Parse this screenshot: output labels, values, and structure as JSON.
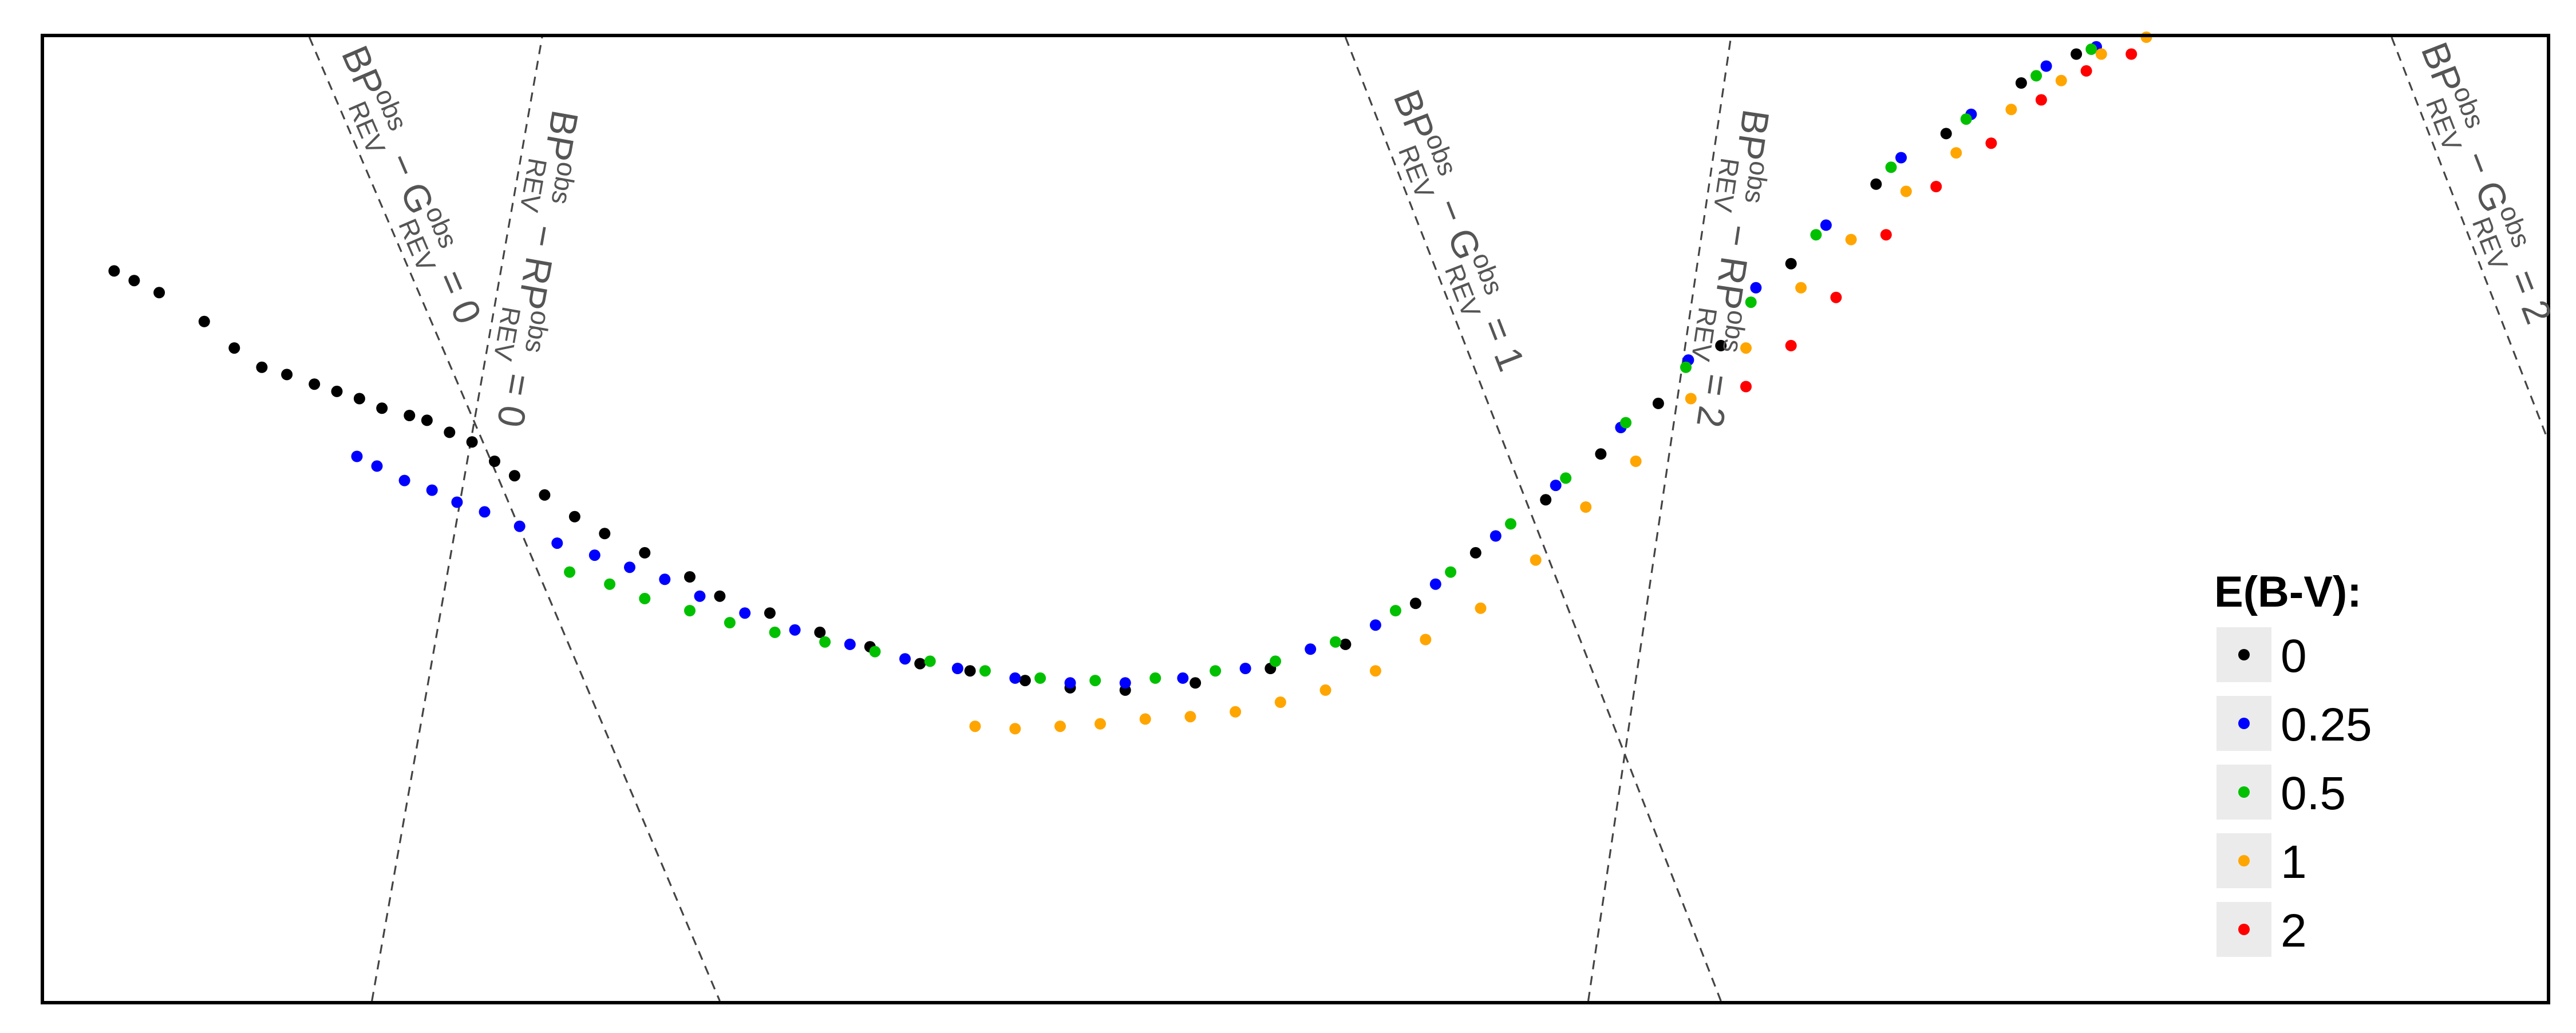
{
  "chart_data": {
    "type": "scatter",
    "title": "",
    "xlabel": "",
    "ylabel": "",
    "axes_visible": false,
    "grid": false,
    "legend": {
      "title": "E(B-V):",
      "position": "right",
      "entries": [
        {
          "label": "0",
          "color": "#000000"
        },
        {
          "label": "0.25",
          "color": "#0000ff"
        },
        {
          "label": "0.5",
          "color": "#00c000"
        },
        {
          "label": "1",
          "color": "#ffa500"
        },
        {
          "label": "2",
          "color": "#ff0000"
        }
      ]
    },
    "xlim": [
      0,
      1000
    ],
    "ylim": [
      0,
      400
    ],
    "guide_lines": [
      {
        "label": {
          "base": "BP",
          "sub": "REV",
          "sup": "obs",
          "minus": "G",
          "minus_sub": "REV",
          "minus_sup": "obs",
          "eq": "= 0"
        },
        "from": [
          106,
          400
        ],
        "to": [
          177,
          228
        ],
        "to2": [
          270,
          0
        ]
      },
      {
        "label": {
          "base": "BP",
          "sub": "REV",
          "sup": "obs",
          "minus": "G",
          "minus_sub": "REV",
          "minus_sup": "obs",
          "eq": "= 1"
        },
        "from": [
          520,
          400
        ],
        "to": [
          670,
          0
        ]
      },
      {
        "label": {
          "base": "BP",
          "sub": "REV",
          "sup": "obs",
          "minus": "G",
          "minus_sub": "REV",
          "minus_sup": "obs",
          "eq": "= 2"
        },
        "from": [
          938,
          400
        ],
        "to": [
          1000,
          234
        ]
      },
      {
        "label": {
          "base": "BP",
          "sub": "REV",
          "sup": "obs",
          "minus": "RP",
          "minus_sub": "REV",
          "minus_sup": "obs",
          "eq": "= 0"
        },
        "from": [
          131,
          0
        ],
        "to": [
          199,
          400
        ]
      },
      {
        "label": {
          "base": "BP",
          "sub": "REV",
          "sup": "obs",
          "minus": "RP",
          "minus_sub": "REV",
          "minus_sup": "obs",
          "eq": "= 2"
        },
        "from": [
          617,
          0
        ],
        "to": [
          674,
          400
        ]
      }
    ],
    "series": [
      {
        "name": "0",
        "color": "#000000",
        "points": [
          [
            28,
            303
          ],
          [
            36,
            299
          ],
          [
            46,
            294
          ],
          [
            64,
            282
          ],
          [
            76,
            271
          ],
          [
            87,
            263
          ],
          [
            97,
            260
          ],
          [
            108,
            256
          ],
          [
            117,
            253
          ],
          [
            126,
            250
          ],
          [
            135,
            246
          ],
          [
            146,
            243
          ],
          [
            153,
            241
          ],
          [
            162,
            236
          ],
          [
            171,
            232
          ],
          [
            180,
            224
          ],
          [
            188,
            218
          ],
          [
            200,
            210
          ],
          [
            212,
            201
          ],
          [
            224,
            194
          ],
          [
            240,
            186
          ],
          [
            258,
            176
          ],
          [
            270,
            168
          ],
          [
            290,
            161
          ],
          [
            310,
            153
          ],
          [
            330,
            147
          ],
          [
            350,
            140
          ],
          [
            370,
            137
          ],
          [
            392,
            133
          ],
          [
            410,
            130
          ],
          [
            432,
            129
          ],
          [
            460,
            132
          ],
          [
            490,
            138
          ],
          [
            520,
            148
          ],
          [
            548,
            165
          ],
          [
            572,
            186
          ],
          [
            600,
            208
          ],
          [
            622,
            227
          ],
          [
            645,
            248
          ],
          [
            670,
            272
          ],
          [
            698,
            306
          ],
          [
            732,
            339
          ],
          [
            760,
            360
          ],
          [
            790,
            381
          ],
          [
            812,
            393
          ]
        ]
      },
      {
        "name": "0.25",
        "color": "#0000ff",
        "points": [
          [
            125,
            226
          ],
          [
            133,
            222
          ],
          [
            144,
            216
          ],
          [
            155,
            212
          ],
          [
            165,
            207
          ],
          [
            176,
            203
          ],
          [
            190,
            197
          ],
          [
            205,
            190
          ],
          [
            220,
            185
          ],
          [
            234,
            180
          ],
          [
            248,
            175
          ],
          [
            262,
            168
          ],
          [
            280,
            161
          ],
          [
            300,
            154
          ],
          [
            322,
            148
          ],
          [
            344,
            142
          ],
          [
            365,
            138
          ],
          [
            388,
            134
          ],
          [
            410,
            132
          ],
          [
            432,
            132
          ],
          [
            455,
            134
          ],
          [
            480,
            138
          ],
          [
            506,
            146
          ],
          [
            532,
            156
          ],
          [
            556,
            173
          ],
          [
            580,
            193
          ],
          [
            604,
            214
          ],
          [
            630,
            238
          ],
          [
            657,
            266
          ],
          [
            684,
            296
          ],
          [
            712,
            322
          ],
          [
            742,
            350
          ],
          [
            770,
            368
          ],
          [
            800,
            388
          ],
          [
            820,
            396
          ]
        ]
      },
      {
        "name": "0.5",
        "color": "#00c000",
        "points": [
          [
            210,
            178
          ],
          [
            226,
            173
          ],
          [
            240,
            167
          ],
          [
            258,
            162
          ],
          [
            274,
            157
          ],
          [
            292,
            153
          ],
          [
            312,
            149
          ],
          [
            332,
            145
          ],
          [
            354,
            141
          ],
          [
            376,
            137
          ],
          [
            398,
            134
          ],
          [
            420,
            133
          ],
          [
            444,
            134
          ],
          [
            468,
            137
          ],
          [
            492,
            141
          ],
          [
            516,
            149
          ],
          [
            540,
            162
          ],
          [
            562,
            178
          ],
          [
            586,
            198
          ],
          [
            608,
            217
          ],
          [
            632,
            240
          ],
          [
            656,
            263
          ],
          [
            682,
            290
          ],
          [
            708,
            318
          ],
          [
            738,
            346
          ],
          [
            768,
            366
          ],
          [
            796,
            384
          ],
          [
            818,
            395
          ]
        ]
      },
      {
        "name": "1",
        "color": "#ffa500",
        "points": [
          [
            372,
            114
          ],
          [
            388,
            113
          ],
          [
            406,
            114
          ],
          [
            422,
            115
          ],
          [
            440,
            117
          ],
          [
            458,
            118
          ],
          [
            476,
            120
          ],
          [
            494,
            124
          ],
          [
            512,
            129
          ],
          [
            532,
            137
          ],
          [
            552,
            150
          ],
          [
            574,
            163
          ],
          [
            596,
            183
          ],
          [
            616,
            205
          ],
          [
            636,
            224
          ],
          [
            658,
            250
          ],
          [
            680,
            271
          ],
          [
            702,
            296
          ],
          [
            722,
            316
          ],
          [
            744,
            336
          ],
          [
            764,
            352
          ],
          [
            786,
            370
          ],
          [
            806,
            382
          ],
          [
            822,
            393
          ],
          [
            840,
            400
          ]
        ]
      },
      {
        "name": "2",
        "color": "#ff0000",
        "points": [
          [
            680,
            255
          ],
          [
            698,
            272
          ],
          [
            716,
            292
          ],
          [
            736,
            318
          ],
          [
            756,
            338
          ],
          [
            778,
            356
          ],
          [
            798,
            374
          ],
          [
            816,
            386
          ],
          [
            834,
            393
          ]
        ]
      }
    ]
  }
}
